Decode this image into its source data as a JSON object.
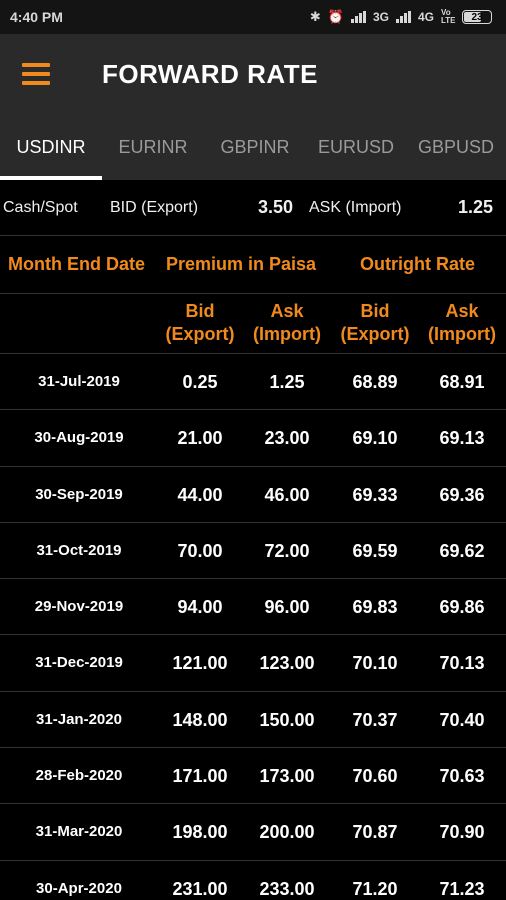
{
  "status_bar": {
    "time": "4:40 PM",
    "network_1": "3G",
    "network_2": "4G",
    "volte": "Vo LTE",
    "battery": "23",
    "icons": [
      "bluetooth-icon",
      "alarm-icon",
      "signal-icon",
      "battery-icon"
    ]
  },
  "app_bar": {
    "title": "FORWARD RATE",
    "menu_icon": "hamburger-menu-icon"
  },
  "tabs": [
    {
      "label": "USDINR",
      "active": true
    },
    {
      "label": "EURINR",
      "active": false
    },
    {
      "label": "GBPINR",
      "active": false
    },
    {
      "label": "EURUSD",
      "active": false
    },
    {
      "label": "GBPUSD",
      "active": false
    }
  ],
  "spot": {
    "cash_label": "Cash/Spot",
    "bid_label": "BID (Export)",
    "bid_value": "3.50",
    "ask_label": "ASK (Import)",
    "ask_value": "1.25"
  },
  "headers": {
    "month_end_date": "Month End Date",
    "premium": "Premium in Paisa",
    "outright": "Outright Rate",
    "bid_line1": "Bid",
    "bid_line2": "(Export)",
    "ask_line1": "Ask",
    "ask_line2": "(Import)"
  },
  "rows": [
    {
      "date": "31-Jul-2019",
      "p_bid": "0.25",
      "p_ask": "1.25",
      "o_bid": "68.89",
      "o_ask": "68.91"
    },
    {
      "date": "30-Aug-2019",
      "p_bid": "21.00",
      "p_ask": "23.00",
      "o_bid": "69.10",
      "o_ask": "69.13"
    },
    {
      "date": "30-Sep-2019",
      "p_bid": "44.00",
      "p_ask": "46.00",
      "o_bid": "69.33",
      "o_ask": "69.36"
    },
    {
      "date": "31-Oct-2019",
      "p_bid": "70.00",
      "p_ask": "72.00",
      "o_bid": "69.59",
      "o_ask": "69.62"
    },
    {
      "date": "29-Nov-2019",
      "p_bid": "94.00",
      "p_ask": "96.00",
      "o_bid": "69.83",
      "o_ask": "69.86"
    },
    {
      "date": "31-Dec-2019",
      "p_bid": "121.00",
      "p_ask": "123.00",
      "o_bid": "70.10",
      "o_ask": "70.13"
    },
    {
      "date": "31-Jan-2020",
      "p_bid": "148.00",
      "p_ask": "150.00",
      "o_bid": "70.37",
      "o_ask": "70.40"
    },
    {
      "date": "28-Feb-2020",
      "p_bid": "171.00",
      "p_ask": "173.00",
      "o_bid": "70.60",
      "o_ask": "70.63"
    },
    {
      "date": "31-Mar-2020",
      "p_bid": "198.00",
      "p_ask": "200.00",
      "o_bid": "70.87",
      "o_ask": "70.90"
    },
    {
      "date": "30-Apr-2020",
      "p_bid": "231.00",
      "p_ask": "233.00",
      "o_bid": "71.20",
      "o_ask": "71.23"
    }
  ],
  "colors": {
    "accent": "#f08a1c",
    "app_bar": "#2a2a2a",
    "background": "#000000"
  }
}
